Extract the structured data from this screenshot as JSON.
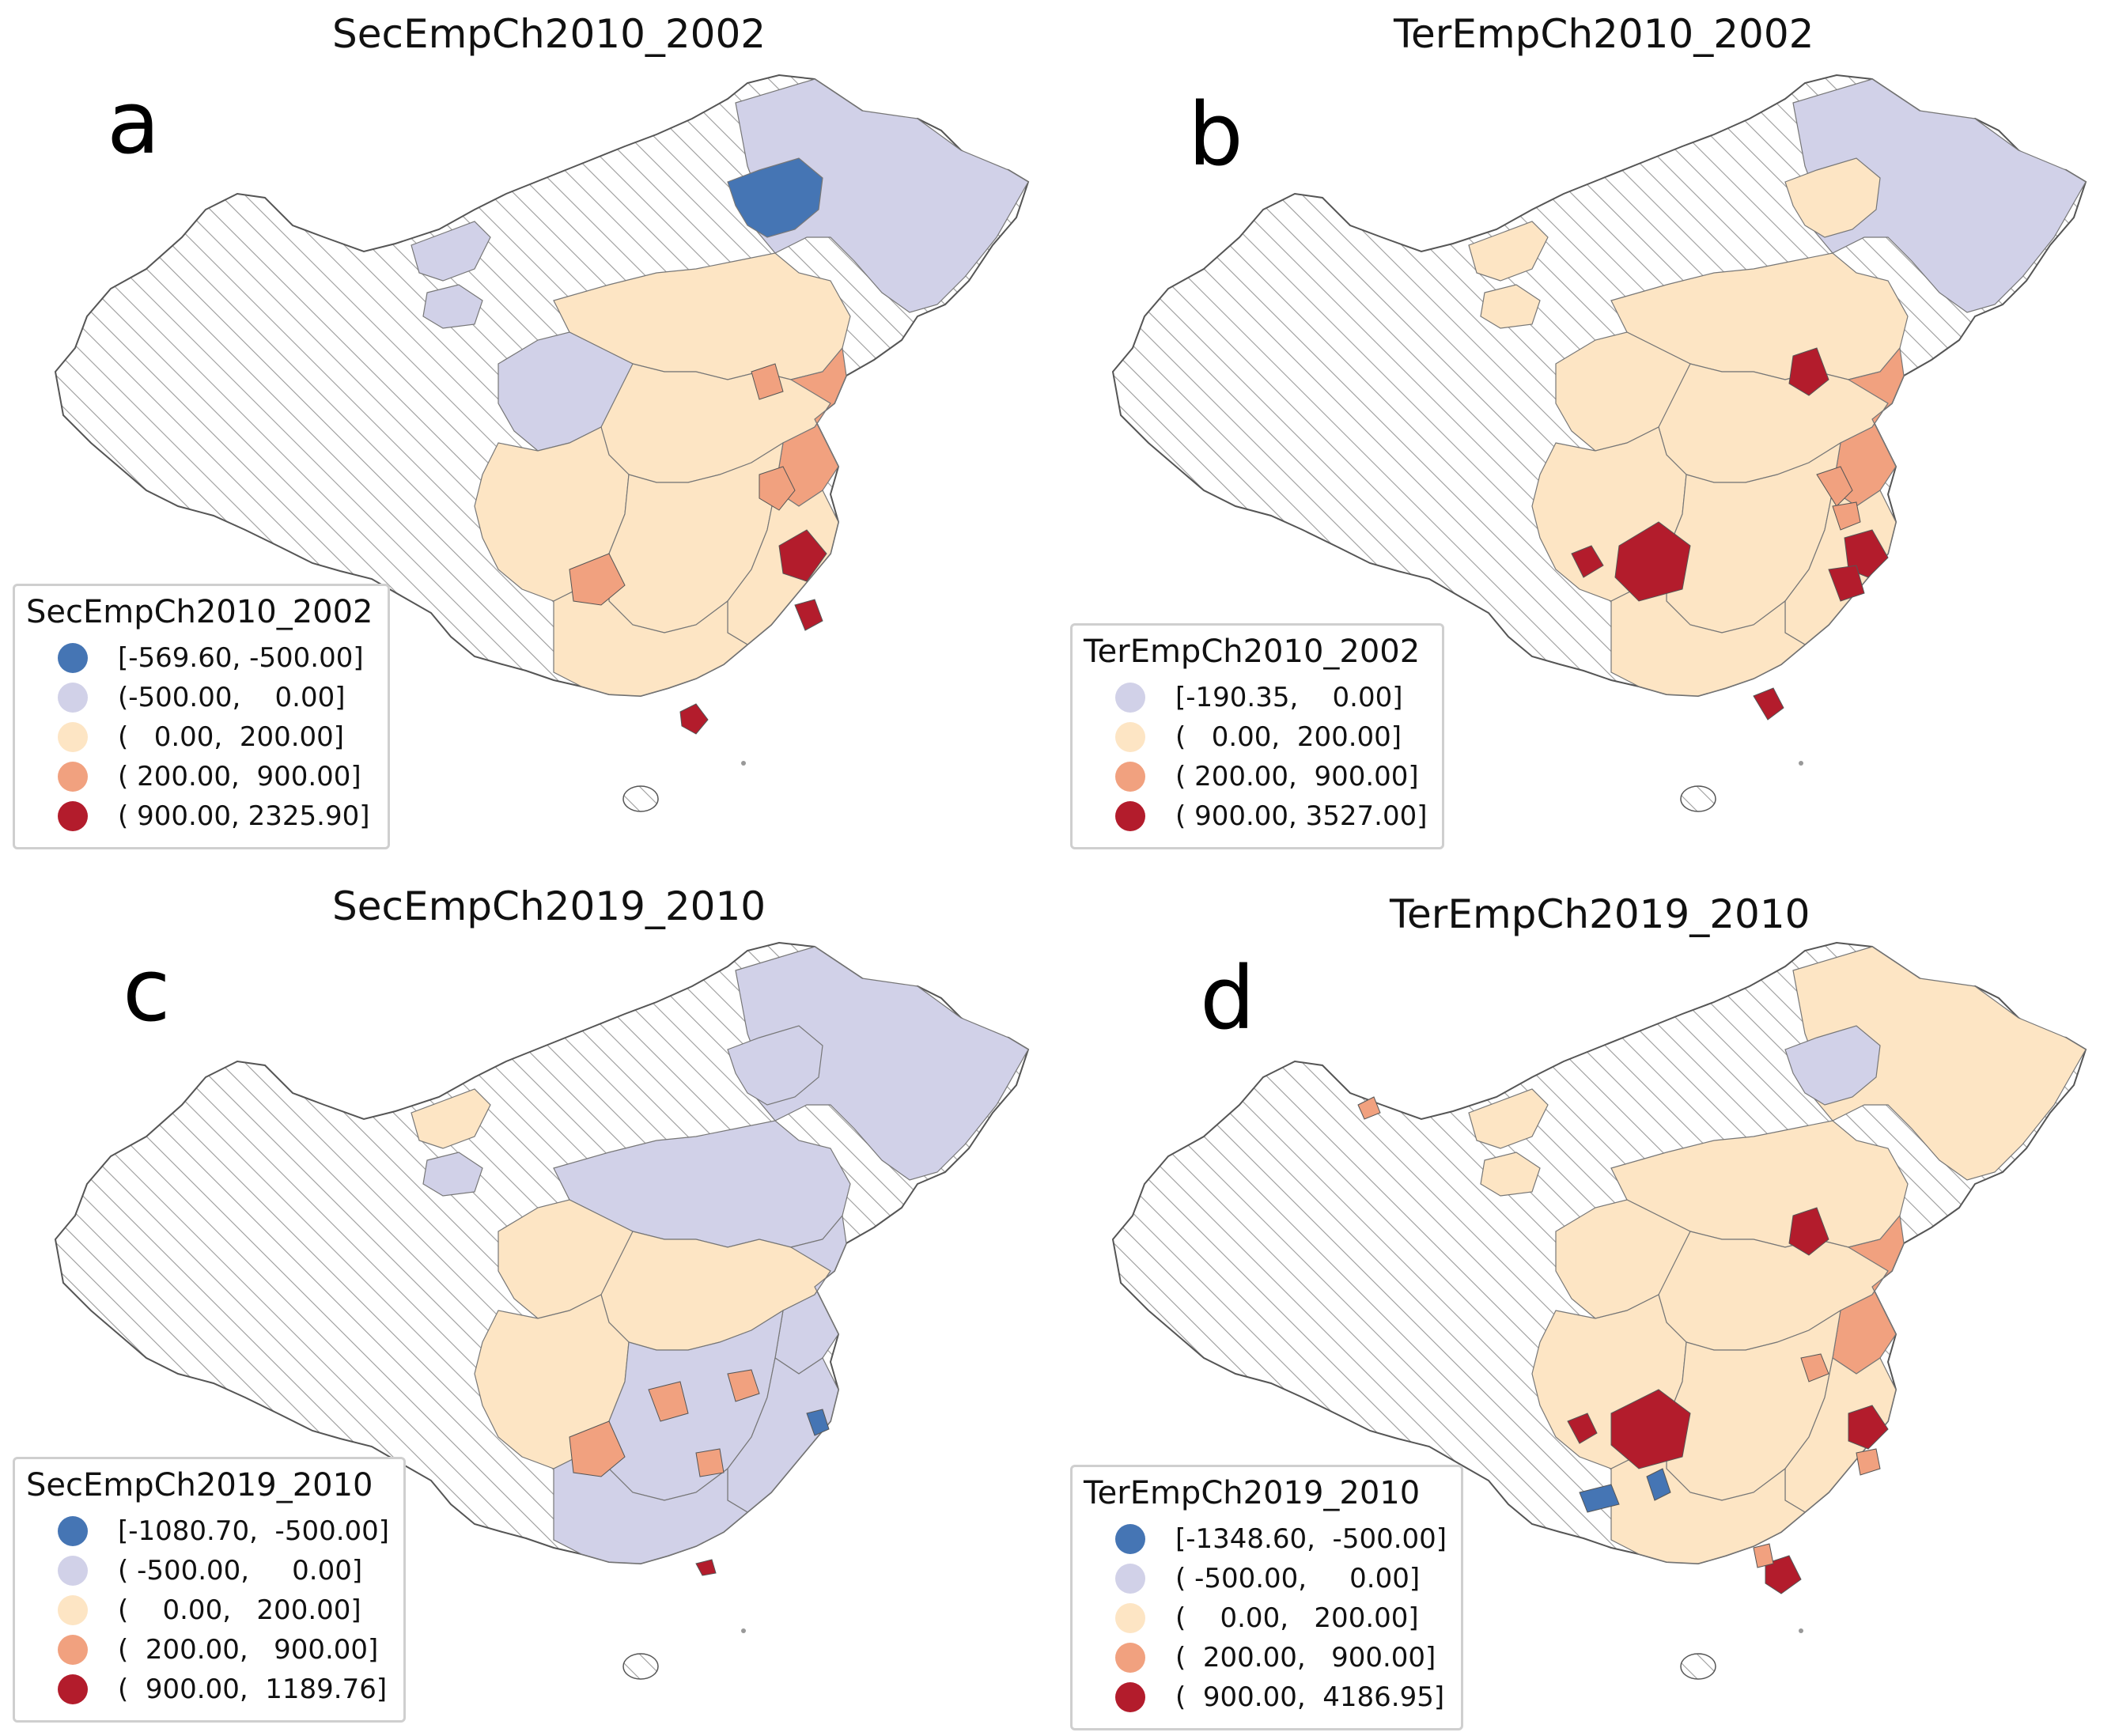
{
  "colors": {
    "dark_blue": "#4575b4",
    "light_purple": "#d1d1e8",
    "cream": "#fde5c4",
    "salmon": "#f1a17f",
    "dark_red": "#b31c2c",
    "hatch_stroke": "#9a9a9a",
    "border": "#555555"
  },
  "panels": [
    {
      "id": "a",
      "letter": "a",
      "title": "SecEmpCh2010_2002",
      "legend": {
        "title": "SecEmpCh2010_2002",
        "items": [
          {
            "label": "[-569.60, -500.00]",
            "color": "#4575b4"
          },
          {
            "label": "(-500.00,    0.00]",
            "color": "#d1d1e8"
          },
          {
            "label": "(   0.00,  200.00]",
            "color": "#fde5c4"
          },
          {
            "label": "( 200.00,  900.00]",
            "color": "#f1a17f"
          },
          {
            "label": "( 900.00, 2325.90]",
            "color": "#b31c2c"
          }
        ]
      }
    },
    {
      "id": "b",
      "letter": "b",
      "title": "TerEmpCh2010_2002",
      "legend": {
        "title": "TerEmpCh2010_2002",
        "items": [
          {
            "label": "[-190.35,    0.00]",
            "color": "#d1d1e8"
          },
          {
            "label": "(   0.00,  200.00]",
            "color": "#fde5c4"
          },
          {
            "label": "( 200.00,  900.00]",
            "color": "#f1a17f"
          },
          {
            "label": "( 900.00, 3527.00]",
            "color": "#b31c2c"
          }
        ]
      }
    },
    {
      "id": "c",
      "letter": "c",
      "title": "SecEmpCh2019_2010",
      "legend": {
        "title": "SecEmpCh2019_2010",
        "items": [
          {
            "label": "[-1080.70,  -500.00]",
            "color": "#4575b4"
          },
          {
            "label": "( -500.00,     0.00]",
            "color": "#d1d1e8"
          },
          {
            "label": "(    0.00,   200.00]",
            "color": "#fde5c4"
          },
          {
            "label": "(  200.00,   900.00]",
            "color": "#f1a17f"
          },
          {
            "label": "(  900.00,  1189.76]",
            "color": "#b31c2c"
          }
        ]
      }
    },
    {
      "id": "d",
      "letter": "d",
      "title": "TerEmpCh2019_2010",
      "legend": {
        "title": "TerEmpCh2019_2010",
        "items": [
          {
            "label": "[-1348.60,  -500.00]",
            "color": "#4575b4"
          },
          {
            "label": "( -500.00,     0.00]",
            "color": "#d1d1e8"
          },
          {
            "label": "(    0.00,   200.00]",
            "color": "#fde5c4"
          },
          {
            "label": "(  200.00,   900.00]",
            "color": "#f1a17f"
          },
          {
            "label": "(  900.00,  4186.95]",
            "color": "#b31c2c"
          }
        ]
      }
    }
  ]
}
